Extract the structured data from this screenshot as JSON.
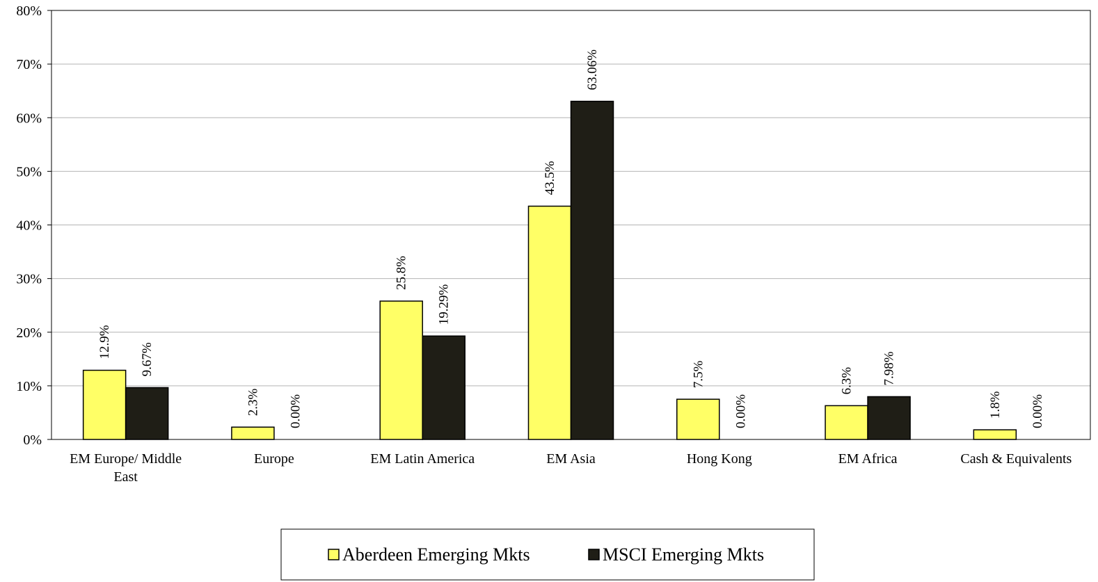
{
  "chart_data": {
    "type": "bar",
    "categories": [
      [
        "EM Europe/ Middle",
        "East"
      ],
      [
        "Europe"
      ],
      [
        "EM Latin America"
      ],
      [
        "EM Asia"
      ],
      [
        "Hong Kong"
      ],
      [
        "EM Africa"
      ],
      [
        "Cash & Equivalents"
      ]
    ],
    "series": [
      {
        "name": "Aberdeen Emerging Mkts",
        "color": "#FFFF66",
        "values": [
          12.9,
          2.3,
          25.8,
          43.5,
          7.5,
          6.3,
          1.8
        ],
        "labels": [
          "12.9%",
          "2.3%",
          "25.8%",
          "43.5%",
          "7.5%",
          "6.3%",
          "1.8%"
        ]
      },
      {
        "name": "MSCI Emerging Mkts",
        "color": "#1F1E16",
        "values": [
          9.67,
          0.0,
          19.29,
          63.06,
          0.0,
          7.98,
          0.0
        ],
        "labels": [
          "9.67%",
          "0.00%",
          "19.29%",
          "63.06%",
          "0.00%",
          "7.98%",
          "0.00%"
        ]
      }
    ],
    "ylim": [
      0,
      80
    ],
    "yticks": [
      0,
      10,
      20,
      30,
      40,
      50,
      60,
      70,
      80
    ],
    "ytick_labels": [
      "0%",
      "10%",
      "20%",
      "30%",
      "40%",
      "50%",
      "60%",
      "70%",
      "80%"
    ],
    "grid": true,
    "legend_position": "bottom-center",
    "title": "",
    "xlabel": "",
    "ylabel": ""
  }
}
